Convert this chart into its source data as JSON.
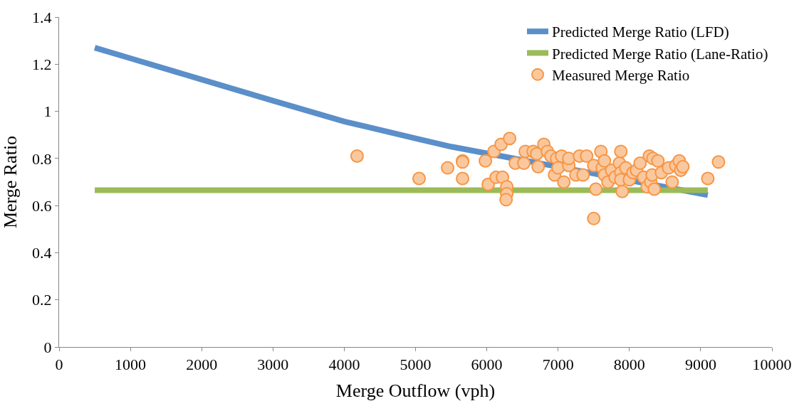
{
  "chart_data": {
    "type": "line",
    "xlabel": "Merge Outflow (vph)",
    "ylabel": "Merge Ratio",
    "xlim": [
      0,
      10000
    ],
    "xticks": [
      0,
      1000,
      2000,
      3000,
      4000,
      5000,
      6000,
      7000,
      8000,
      9000,
      10000
    ],
    "ylim": [
      0,
      1.4
    ],
    "yticks": [
      0,
      0.2,
      0.4,
      0.6,
      0.8,
      1,
      1.2,
      1.4
    ],
    "grid": false,
    "legend": "top right",
    "series": [
      {
        "name": "Predicted Merge Ratio (LFD)",
        "type": "line",
        "color": "#5b8fc9",
        "marker": "none",
        "line_style": "solid",
        "x": [
          500,
          1000,
          2000,
          3000,
          4000,
          5000,
          5500,
          9100
        ],
        "values": [
          1.27,
          1.225,
          1.135,
          1.045,
          0.957,
          0.885,
          0.85,
          0.645
        ]
      },
      {
        "name": "Predicted Merge Ratio (Lane-Ratio)",
        "color": "#9bbb59",
        "marker": "none",
        "line_style": "solid",
        "x": [
          500,
          9100
        ],
        "values": [
          0.665,
          0.665
        ]
      },
      {
        "name": "Measured Merge Ratio",
        "type": "scatter",
        "color": "#f79646",
        "marker": "circle",
        "x": [
          4180,
          5050,
          5450,
          5660,
          5660,
          5660,
          5980,
          6020,
          6100,
          6130,
          6200,
          6220,
          6280,
          6280,
          6270,
          6320,
          6400,
          6520,
          6540,
          6650,
          6700,
          6720,
          6800,
          6850,
          6900,
          6950,
          6980,
          7000,
          7050,
          7080,
          7150,
          7150,
          7250,
          7300,
          7350,
          7400,
          7500,
          7500,
          7530,
          7600,
          7620,
          7650,
          7650,
          7700,
          7750,
          7800,
          7860,
          7880,
          7880,
          7900,
          7880,
          7950,
          8000,
          8050,
          8100,
          8150,
          8200,
          8250,
          8280,
          8300,
          8320,
          8330,
          8350,
          8400,
          8450,
          8550,
          8600,
          8650,
          8700,
          8720,
          8750,
          9100,
          9250
        ],
        "values": [
          0.81,
          0.715,
          0.76,
          0.79,
          0.785,
          0.715,
          0.79,
          0.69,
          0.83,
          0.72,
          0.86,
          0.72,
          0.68,
          0.65,
          0.625,
          0.885,
          0.78,
          0.78,
          0.83,
          0.83,
          0.82,
          0.765,
          0.86,
          0.83,
          0.81,
          0.73,
          0.8,
          0.76,
          0.81,
          0.7,
          0.77,
          0.8,
          0.73,
          0.81,
          0.73,
          0.81,
          0.77,
          0.545,
          0.67,
          0.83,
          0.76,
          0.79,
          0.73,
          0.7,
          0.75,
          0.72,
          0.78,
          0.83,
          0.74,
          0.66,
          0.71,
          0.76,
          0.71,
          0.74,
          0.75,
          0.78,
          0.72,
          0.68,
          0.81,
          0.7,
          0.73,
          0.8,
          0.67,
          0.79,
          0.74,
          0.76,
          0.7,
          0.77,
          0.79,
          0.75,
          0.765,
          0.715,
          0.785
        ]
      }
    ]
  }
}
